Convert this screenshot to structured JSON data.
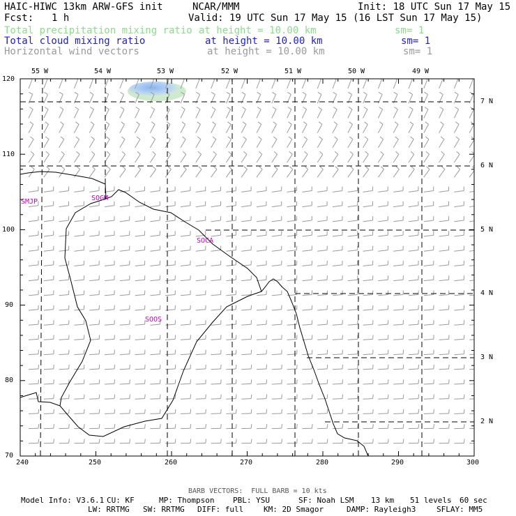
{
  "header": {
    "model_title": "HAIC-HIWC 13km ARW-GFS init",
    "org": "NCAR/MMM",
    "init": "Init: 18 UTC Sun 17 May 15",
    "fcst_label": "Fcst:",
    "fcst_value": "1 h",
    "valid": "Valid: 19 UTC Sun 17 May 15 (16 LST Sun 17 May 15)",
    "fields": [
      {
        "name": "Total precipitation mixing ratio",
        "level": "at height = 10.00 km",
        "sm": "sm= 1",
        "color": "#8fd88f"
      },
      {
        "name": "Total cloud mixing ratio",
        "level": "at height = 10.00 km",
        "sm": "sm= 1",
        "color": "#2020d0"
      },
      {
        "name": "Horizontal wind vectors",
        "level": "at height = 10.00 km",
        "sm": "sm= 1",
        "color": "#9a9a9a"
      }
    ]
  },
  "map": {
    "x_ticks": [
      "240",
      "250",
      "260",
      "270",
      "280",
      "290",
      "300"
    ],
    "y_ticks": [
      "70",
      "80",
      "90",
      "100",
      "110",
      "120"
    ],
    "lon_labels": [
      "55 W",
      "54 W",
      "53 W",
      "52 W",
      "51 W",
      "50 W",
      "49 W"
    ],
    "lat_labels": [
      "2 N",
      "3 N",
      "4 N",
      "5 N",
      "6 N",
      "7 N"
    ],
    "stations": [
      "SMJP",
      "SOGM",
      "SOCA",
      "SOOS"
    ],
    "station_color": "#c000c0",
    "cloud_colors": [
      "#a8c8f0",
      "#c8e8c8"
    ]
  },
  "footer": {
    "barb_note": "BARB VECTORS:  FULL BARB = 10 kts",
    "line1": [
      "Model Info: V3.6.1",
      "CU: KF",
      "MP: Thompson",
      "PBL: YSU",
      "SF: Noah LSM",
      "13 km",
      "51 levels",
      "60 sec"
    ],
    "line2": [
      "LW: RRTMG",
      "SW: RRTMG",
      "DIFF: full",
      "KM: 2D Smagor",
      "DAMP: Rayleigh3",
      "SFLAY: MM5"
    ]
  }
}
